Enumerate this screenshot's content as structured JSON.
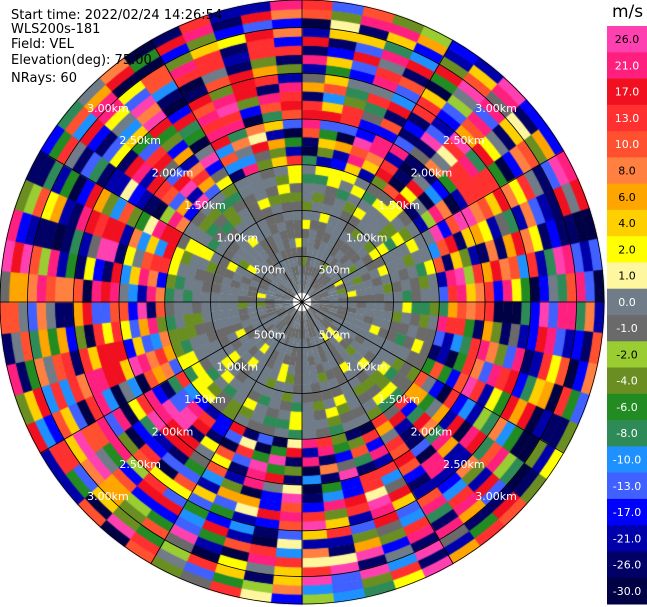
{
  "info": {
    "start_time": "Start time: 2022/02/24 14:26:54",
    "instrument": "WLS200s-181",
    "field": "Field: VEL",
    "elevation": "Elevation(deg): 75.00",
    "nrays": "NRays: 60"
  },
  "chart_data": {
    "type": "heatmap",
    "projection": "polar-ppi",
    "field": "VEL",
    "units": "m/s",
    "n_rays": 60,
    "elevation_deg": 75.0,
    "range_rings": [
      "500m",
      "1.00km",
      "1.50km",
      "2.00km",
      "2.50km",
      "3.00km"
    ],
    "colorbar": {
      "unit_label": "m/s",
      "ticks": [
        "26.0",
        "21.0",
        "17.0",
        "13.0",
        "10.0",
        "8.0",
        "6.0",
        "4.0",
        "2.0",
        "1.0",
        "0.0",
        "-1.0",
        "-2.0",
        "-4.0",
        "-6.0",
        "-8.0",
        "-10.0",
        "-13.0",
        "-17.0",
        "-21.0",
        "-26.0",
        "-30.0"
      ],
      "bands": [
        {
          "lo": 26,
          "color": "#ff40b0"
        },
        {
          "lo": 21,
          "color": "#ff1f7f"
        },
        {
          "lo": 17,
          "color": "#f01020"
        },
        {
          "lo": 13,
          "color": "#ff3030"
        },
        {
          "lo": 10,
          "color": "#ff5030"
        },
        {
          "lo": 8,
          "color": "#ff8040"
        },
        {
          "lo": 6,
          "color": "#ffa500"
        },
        {
          "lo": 4,
          "color": "#ffd000"
        },
        {
          "lo": 2,
          "color": "#ffff00"
        },
        {
          "lo": 1,
          "color": "#fff7a0"
        },
        {
          "lo": 0,
          "color": "#707c88"
        },
        {
          "lo": -1,
          "color": "#6a6a6a"
        },
        {
          "lo": -2,
          "color": "#9acd32"
        },
        {
          "lo": -4,
          "color": "#6b8e23"
        },
        {
          "lo": -6,
          "color": "#228b22"
        },
        {
          "lo": -8,
          "color": "#2e8b57"
        },
        {
          "lo": -10,
          "color": "#1e90ff"
        },
        {
          "lo": -13,
          "color": "#4060ff"
        },
        {
          "lo": -17,
          "color": "#0000ff"
        },
        {
          "lo": -21,
          "color": "#0000aa"
        },
        {
          "lo": -26,
          "color": "#000066"
        },
        {
          "lo": -30,
          "color": "#000044"
        }
      ]
    }
  }
}
